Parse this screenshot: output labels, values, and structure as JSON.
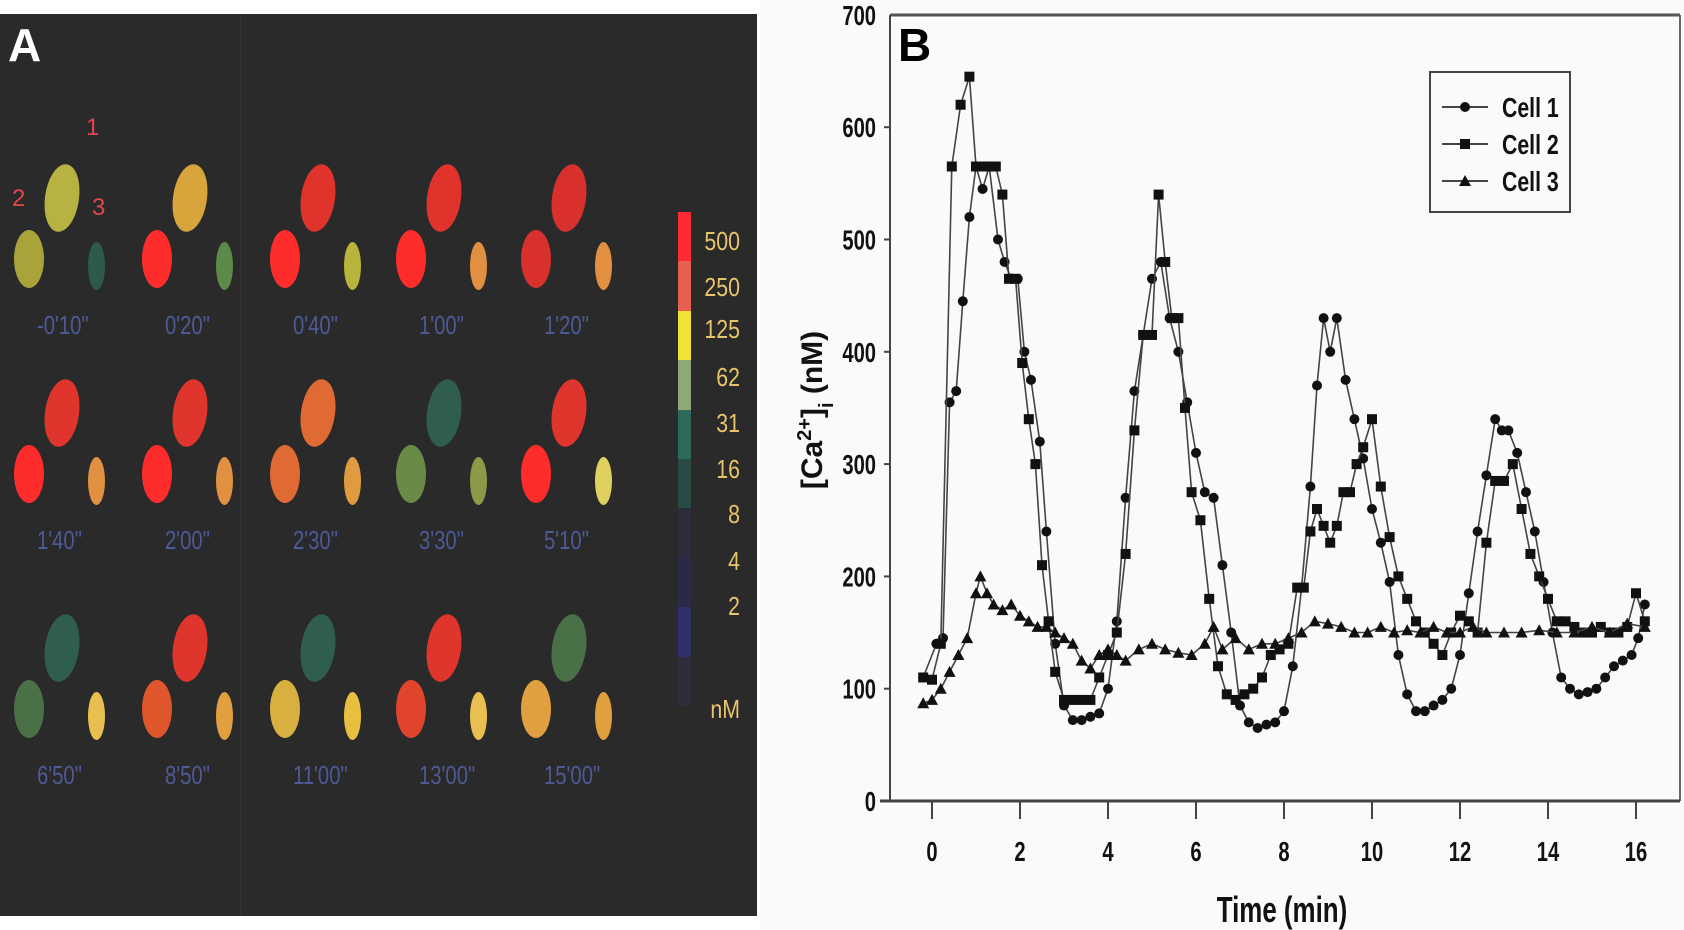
{
  "panelA": {
    "letter": "A",
    "cell_labels": [
      "1",
      "2",
      "3"
    ],
    "frames": [
      {
        "time": "-0'10\"",
        "colors": [
          "#b7b342",
          "#a8a43a",
          "#2d5a4a"
        ]
      },
      {
        "time": "0'20\"",
        "colors": [
          "#d8a43c",
          "#ff2c2c",
          "#5c8a4a"
        ]
      },
      {
        "time": "0'40\"",
        "colors": [
          "#e0332c",
          "#ff2c2c",
          "#b8b43c"
        ]
      },
      {
        "time": "1'00\"",
        "colors": [
          "#e0332c",
          "#ff2c2c",
          "#e09040"
        ]
      },
      {
        "time": "1'20\"",
        "colors": [
          "#d8302c",
          "#d8302c",
          "#e09040"
        ]
      },
      {
        "time": "1'40\"",
        "colors": [
          "#e0352c",
          "#ff2c2c",
          "#e09040"
        ]
      },
      {
        "time": "2'00\"",
        "colors": [
          "#e0352c",
          "#ff2c2c",
          "#e09040"
        ]
      },
      {
        "time": "2'30\"",
        "colors": [
          "#e06a34",
          "#e06a34",
          "#e09a40"
        ]
      },
      {
        "time": "3'30\"",
        "colors": [
          "#2f5e4e",
          "#6a8a48",
          "#8a9a48"
        ]
      },
      {
        "time": "5'10\"",
        "colors": [
          "#e0352c",
          "#ff2c2c",
          "#e0d060"
        ]
      },
      {
        "time": "6'50\"",
        "colors": [
          "#2f5e4e",
          "#4a7048",
          "#e8c050"
        ]
      },
      {
        "time": "8'50\"",
        "colors": [
          "#e0352c",
          "#e0562c",
          "#e0a040"
        ]
      },
      {
        "time": "11'00\"",
        "colors": [
          "#2f5e4e",
          "#d8b040",
          "#e8c040"
        ]
      },
      {
        "time": "13'00\"",
        "colors": [
          "#e0352c",
          "#e0452c",
          "#e8c050"
        ]
      },
      {
        "time": "15'00\"",
        "colors": [
          "#4a7048",
          "#e0a040",
          "#e0a040"
        ]
      }
    ],
    "colorbar": {
      "labels": [
        "500",
        "250",
        "125",
        "62",
        "31",
        "16",
        "8",
        "4",
        "2"
      ],
      "unit": "nM",
      "colors": [
        "#ff2a35",
        "#e66050",
        "#f2e234",
        "#8ea878",
        "#2e6a5a",
        "#2a4a46",
        "#2c2c3a",
        "#2a2a48",
        "#30306a",
        "#2e2e3a"
      ]
    }
  },
  "chart_data": {
    "type": "line",
    "panel_letter": "B",
    "title": "",
    "xlabel": "Time (min)",
    "ylabel": "[Ca2+]i (nM)",
    "ylabel_parts": {
      "base": "[Ca",
      "sup": "2+",
      "close": "]",
      "sub": "i",
      "unit": " (nM)"
    },
    "xlim": [
      -1.5,
      17.1
    ],
    "ylim": [
      0,
      700
    ],
    "xticks": [
      0,
      2,
      4,
      6,
      8,
      10,
      12,
      14,
      16
    ],
    "yticks": [
      0,
      100,
      200,
      300,
      400,
      500,
      600,
      700
    ],
    "grid": false,
    "legend_position": "top-right",
    "series": [
      {
        "name": "Cell 1",
        "marker": "circle",
        "x": [
          -0.2,
          0.1,
          0.25,
          0.4,
          0.55,
          0.7,
          0.85,
          1.0,
          1.15,
          1.3,
          1.5,
          1.65,
          1.8,
          1.95,
          2.1,
          2.25,
          2.45,
          2.6,
          2.8,
          3.0,
          3.2,
          3.4,
          3.6,
          3.8,
          4.0,
          4.2,
          4.4,
          4.6,
          4.8,
          5.0,
          5.2,
          5.4,
          5.6,
          5.8,
          6.0,
          6.2,
          6.4,
          6.6,
          6.8,
          7.0,
          7.2,
          7.4,
          7.6,
          7.8,
          8.0,
          8.2,
          8.4,
          8.6,
          8.75,
          8.9,
          9.05,
          9.2,
          9.4,
          9.6,
          9.8,
          10.0,
          10.2,
          10.4,
          10.6,
          10.8,
          11.0,
          11.2,
          11.4,
          11.6,
          11.8,
          12.0,
          12.2,
          12.4,
          12.6,
          12.8,
          12.95,
          13.1,
          13.3,
          13.5,
          13.7,
          13.9,
          14.1,
          14.3,
          14.5,
          14.7,
          14.9,
          15.1,
          15.3,
          15.5,
          15.7,
          15.9,
          16.05,
          16.2
        ],
        "y": [
          110,
          140,
          145,
          355,
          365,
          445,
          520,
          565,
          545,
          565,
          500,
          480,
          465,
          465,
          400,
          375,
          320,
          240,
          140,
          85,
          72,
          72,
          75,
          78,
          100,
          160,
          270,
          365,
          415,
          465,
          480,
          430,
          400,
          355,
          310,
          275,
          270,
          210,
          150,
          85,
          70,
          65,
          68,
          70,
          80,
          120,
          190,
          280,
          370,
          430,
          400,
          430,
          375,
          340,
          305,
          260,
          230,
          195,
          130,
          95,
          80,
          80,
          85,
          90,
          100,
          130,
          185,
          240,
          290,
          340,
          330,
          330,
          310,
          275,
          240,
          195,
          150,
          110,
          100,
          95,
          97,
          100,
          110,
          120,
          125,
          130,
          145,
          175
        ]
      },
      {
        "name": "Cell 2",
        "marker": "square",
        "x": [
          -0.2,
          0.0,
          0.2,
          0.45,
          0.65,
          0.85,
          1.0,
          1.15,
          1.3,
          1.45,
          1.6,
          1.75,
          1.9,
          2.05,
          2.2,
          2.35,
          2.5,
          2.65,
          2.8,
          3.0,
          3.2,
          3.4,
          3.6,
          3.8,
          4.0,
          4.2,
          4.4,
          4.6,
          4.8,
          5.0,
          5.15,
          5.3,
          5.45,
          5.6,
          5.75,
          5.9,
          6.1,
          6.3,
          6.5,
          6.7,
          6.9,
          7.1,
          7.3,
          7.5,
          7.7,
          7.9,
          8.1,
          8.3,
          8.45,
          8.6,
          8.75,
          8.9,
          9.05,
          9.2,
          9.35,
          9.5,
          9.65,
          9.8,
          10.0,
          10.2,
          10.4,
          10.6,
          10.8,
          11.0,
          11.2,
          11.4,
          11.6,
          11.8,
          12.0,
          12.2,
          12.4,
          12.6,
          12.8,
          13.0,
          13.2,
          13.4,
          13.6,
          13.8,
          14.0,
          14.2,
          14.4,
          14.6,
          14.8,
          15.0,
          15.2,
          15.4,
          15.6,
          15.8,
          16.0,
          16.2
        ],
        "y": [
          110,
          108,
          140,
          565,
          620,
          645,
          565,
          565,
          565,
          565,
          540,
          465,
          465,
          390,
          340,
          300,
          210,
          160,
          115,
          90,
          90,
          90,
          90,
          110,
          130,
          150,
          220,
          330,
          415,
          415,
          540,
          480,
          430,
          430,
          350,
          275,
          250,
          180,
          120,
          95,
          90,
          95,
          100,
          110,
          130,
          135,
          140,
          190,
          190,
          240,
          260,
          245,
          230,
          245,
          275,
          275,
          300,
          315,
          340,
          280,
          235,
          200,
          180,
          160,
          150,
          140,
          130,
          150,
          165,
          160,
          150,
          230,
          285,
          285,
          300,
          260,
          220,
          200,
          180,
          160,
          160,
          155,
          150,
          150,
          155,
          150,
          150,
          155,
          185,
          160
        ]
      },
      {
        "name": "Cell 3",
        "marker": "triangle",
        "x": [
          -0.2,
          0.0,
          0.2,
          0.4,
          0.6,
          0.8,
          1.0,
          1.1,
          1.25,
          1.4,
          1.6,
          1.8,
          2.0,
          2.2,
          2.4,
          2.6,
          2.8,
          3.0,
          3.2,
          3.4,
          3.6,
          3.8,
          4.0,
          4.2,
          4.4,
          4.7,
          5.0,
          5.3,
          5.6,
          5.9,
          6.2,
          6.4,
          6.6,
          6.9,
          7.2,
          7.5,
          7.8,
          8.1,
          8.4,
          8.7,
          9.0,
          9.3,
          9.6,
          9.9,
          10.2,
          10.5,
          10.8,
          11.1,
          11.4,
          11.7,
          12.0,
          12.3,
          12.6,
          13.0,
          13.4,
          13.8,
          14.2,
          14.6,
          15.0,
          15.4,
          15.8,
          16.2
        ],
        "y": [
          87,
          90,
          100,
          115,
          130,
          145,
          185,
          200,
          185,
          175,
          170,
          175,
          165,
          160,
          155,
          155,
          150,
          145,
          140,
          125,
          118,
          130,
          135,
          130,
          125,
          135,
          140,
          135,
          132,
          130,
          140,
          155,
          135,
          145,
          135,
          140,
          140,
          145,
          150,
          160,
          158,
          155,
          150,
          150,
          155,
          150,
          152,
          150,
          155,
          150,
          150,
          155,
          150,
          150,
          150,
          152,
          150,
          150,
          155,
          150,
          158,
          155
        ]
      }
    ]
  }
}
